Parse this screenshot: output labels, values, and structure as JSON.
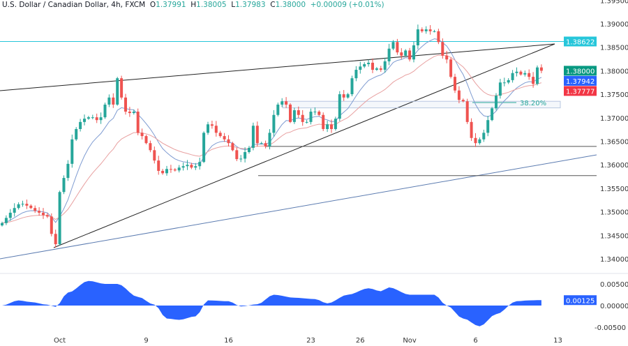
{
  "header": {
    "symbol": "U.S. Dollar / Canadian Dollar, 4h, FXCM",
    "o_label": "O",
    "o": "1.37991",
    "h_label": "H",
    "h": "1.38005",
    "l_label": "L",
    "l": "1.37983",
    "c_label": "C",
    "c": "1.38000",
    "change": "+0.00009 (+0.01%)"
  },
  "colors": {
    "up": "#26a69a",
    "down": "#ef5350",
    "fast_ma": "#7e9bd1",
    "slow_ma": "#e8a0a0",
    "osc": "#2962ff",
    "hline": "#26c6da",
    "last": "#089981",
    "fast_tag": "#2962ff",
    "slow_tag": "#f23645"
  },
  "price_axis": {
    "ticks": [
      "1.39500",
      "1.39000",
      "1.38500",
      "1.38000",
      "1.37500",
      "1.37000",
      "1.36500",
      "1.36000",
      "1.35500",
      "1.35000",
      "1.34500",
      "1.34000"
    ],
    "tick_values": [
      1.395,
      1.39,
      1.385,
      1.38,
      1.375,
      1.37,
      1.365,
      1.36,
      1.355,
      1.35,
      1.345,
      1.34
    ],
    "tags": [
      {
        "label": "1.38622",
        "value": 1.38622,
        "color": "#26c6da"
      },
      {
        "label": "1.38000",
        "value": 1.38,
        "color": "#089981"
      },
      {
        "label": "1.37942",
        "value": 1.37942,
        "color": "#2962ff"
      },
      {
        "label": "1.37777",
        "value": 1.37777,
        "color": "#f23645"
      }
    ]
  },
  "osc_axis": {
    "ticks": [
      "0.00500",
      "0.00000",
      "-0.00500"
    ],
    "tick_values": [
      0.005,
      0,
      -0.005
    ],
    "tag": {
      "label": "0.00125",
      "value": 0.00125
    }
  },
  "time_axis": {
    "labels": [
      "Oct",
      "9",
      "16",
      "23",
      "26",
      "Nov",
      "6",
      "13"
    ],
    "candle_index": [
      14,
      35,
      55,
      75,
      87,
      99,
      115,
      135
    ]
  },
  "drawings": {
    "resistance_level": 1.38622,
    "support_levels": [
      1.3639,
      1.3577
    ],
    "fib_label": "38.20%",
    "fib_zone": [
      1.3735,
      1.3721
    ]
  },
  "chart_data": {
    "type": "candlestick",
    "title": "U.S. Dollar / Canadian Dollar, 4h, FXCM",
    "ylim": [
      1.3375,
      1.3955
    ],
    "closes": [
      1.3476,
      1.3487,
      1.3498,
      1.3508,
      1.3516,
      1.3517,
      1.3513,
      1.3508,
      1.3502,
      1.3498,
      1.3493,
      1.349,
      1.3453,
      1.3431,
      1.3542,
      1.3572,
      1.3602,
      1.3654,
      1.3676,
      1.3691,
      1.3698,
      1.3701,
      1.3701,
      1.3695,
      1.3701,
      1.3728,
      1.3743,
      1.3728,
      1.3784,
      1.3743,
      1.3713,
      1.371,
      1.3713,
      1.3668,
      1.3661,
      1.3646,
      1.3631,
      1.3609,
      1.3587,
      1.3582,
      1.3591,
      1.359,
      1.3588,
      1.3594,
      1.3597,
      1.36,
      1.3594,
      1.3597,
      1.3606,
      1.3668,
      1.3686,
      1.3683,
      1.3668,
      1.3661,
      1.3654,
      1.3646,
      1.3631,
      1.3612,
      1.3613,
      1.3627,
      1.3636,
      1.3683,
      1.3646,
      1.3646,
      1.3639,
      1.3668,
      1.3706,
      1.3728,
      1.3735,
      1.3728,
      1.3691,
      1.3716,
      1.3706,
      1.3691,
      1.3691,
      1.3713,
      1.3713,
      1.3706,
      1.3676,
      1.3686,
      1.3676,
      1.3698,
      1.375,
      1.3743,
      1.375,
      1.3784,
      1.3802,
      1.3809,
      1.3814,
      1.3817,
      1.3802,
      1.3805,
      1.3802,
      1.382,
      1.3847,
      1.3861,
      1.3839,
      1.3832,
      1.3843,
      1.3824,
      1.3854,
      1.3888,
      1.3884,
      1.3888,
      1.3884,
      1.3884,
      1.3861,
      1.3832,
      1.3824,
      1.3787,
      1.3758,
      1.3738,
      1.3735,
      1.3691,
      1.3657,
      1.3646,
      1.3654,
      1.3668,
      1.3695,
      1.372,
      1.3747,
      1.3775,
      1.3775,
      1.378,
      1.3795,
      1.3798,
      1.3792,
      1.3795,
      1.3787,
      1.3772,
      1.3807,
      1.38
    ],
    "oscillator": [
      [
        0,
        0.0
      ],
      [
        4,
        0.0012
      ],
      [
        7,
        0.0008
      ],
      [
        11,
        0.0002
      ],
      [
        13,
        -0.0003
      ],
      [
        16,
        0.003
      ],
      [
        21,
        0.0057
      ],
      [
        25,
        0.005
      ],
      [
        28,
        0.005
      ],
      [
        33,
        0.002
      ],
      [
        37,
        0.0002
      ],
      [
        40,
        -0.003
      ],
      [
        43,
        -0.0033
      ],
      [
        47,
        -0.0025
      ],
      [
        50,
        0.0012
      ],
      [
        55,
        0.001
      ],
      [
        58,
        -0.0002
      ],
      [
        62,
        0.0003
      ],
      [
        66,
        0.0025
      ],
      [
        71,
        0.0018
      ],
      [
        76,
        0.0015
      ],
      [
        79,
        0.0005
      ],
      [
        84,
        0.0025
      ],
      [
        89,
        0.004
      ],
      [
        92,
        0.0033
      ],
      [
        94,
        0.0042
      ],
      [
        99,
        0.0025
      ],
      [
        105,
        0.0025
      ],
      [
        108,
        0.0
      ],
      [
        112,
        -0.003
      ],
      [
        116,
        -0.0048
      ],
      [
        120,
        -0.002
      ],
      [
        125,
        0.001
      ],
      [
        128,
        0.0012
      ],
      [
        131,
        0.00125
      ]
    ]
  }
}
